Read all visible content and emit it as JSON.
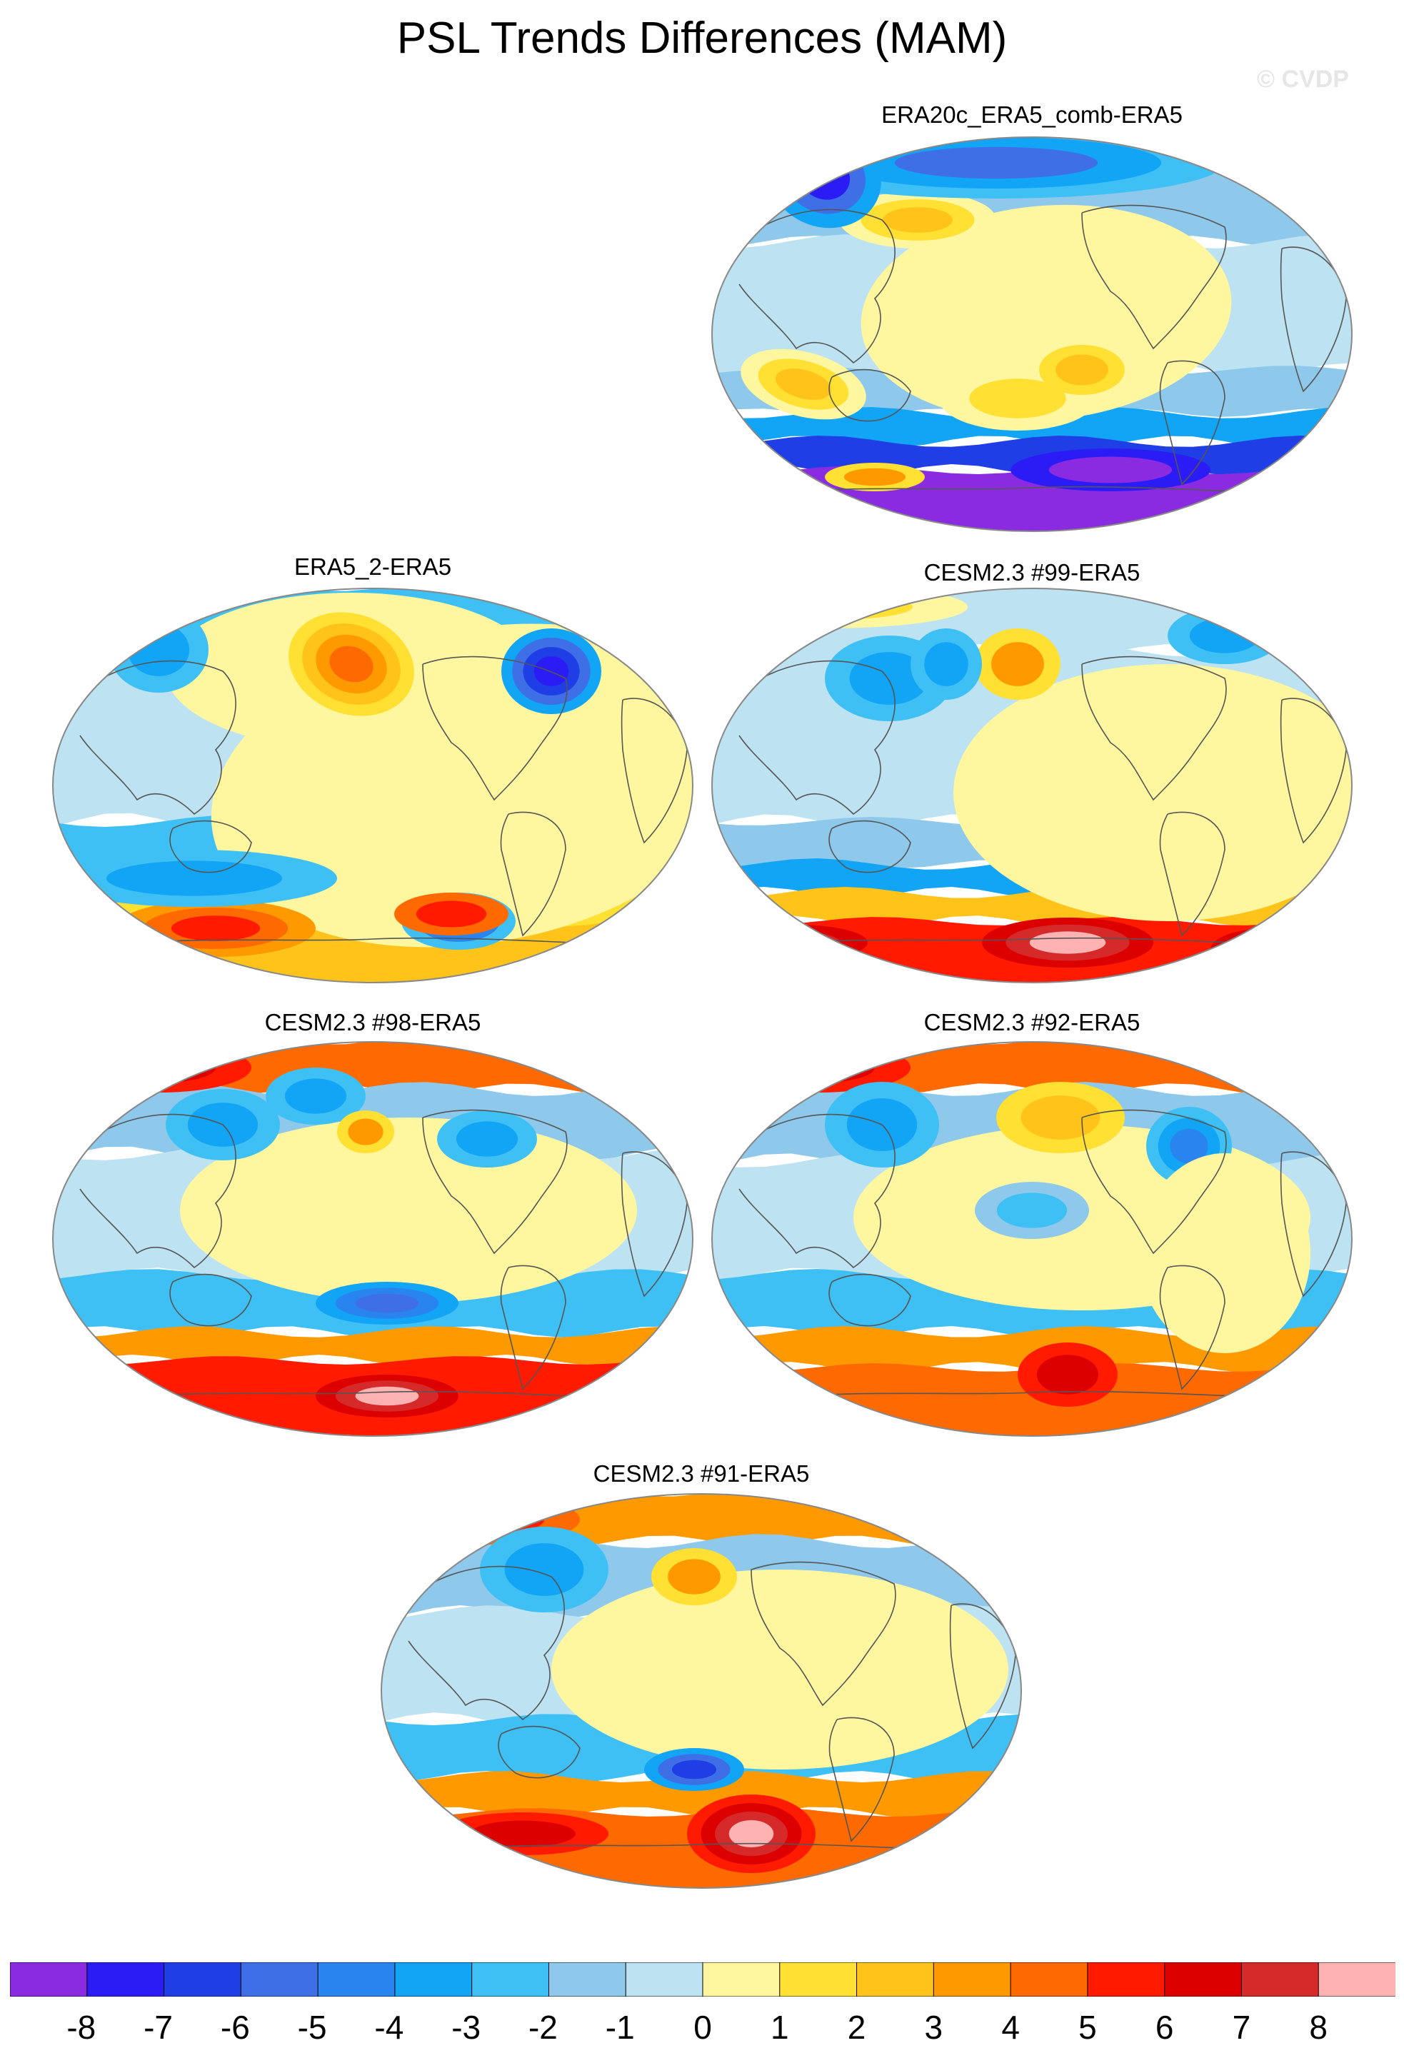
{
  "page": {
    "title": "PSL Trends Differences (MAM)",
    "watermark": "© CVDP"
  },
  "chart_data": {
    "type": "heatmap",
    "projection": "world-map (Winkel-like oval), Pacific-centered",
    "panels": [
      {
        "title": "ERA20c_ERA5_comb-ERA5",
        "pattern": "era20c"
      },
      {
        "title": "ERA5_2-ERA5",
        "pattern": "era5_2"
      },
      {
        "title": "CESM2.3 #99-ERA5",
        "pattern": "cesm99"
      },
      {
        "title": "CESM2.3 #98-ERA5",
        "pattern": "cesm98"
      },
      {
        "title": "CESM2.3 #92-ERA5",
        "pattern": "cesm92"
      },
      {
        "title": "CESM2.3 #91-ERA5",
        "pattern": "cesm91"
      }
    ],
    "colorbar": {
      "labels": [
        "-8",
        "-7",
        "-6",
        "-5",
        "-4",
        "-3",
        "-2",
        "-1",
        "0",
        "1",
        "2",
        "3",
        "4",
        "5",
        "6",
        "7",
        "8"
      ],
      "colors": [
        "#8a2be2",
        "#2b1cf5",
        "#1f3ee6",
        "#3f6fe6",
        "#2a84f0",
        "#12a4f5",
        "#3fc0f5",
        "#8ec8ea",
        "#bde2f2",
        "#fff7a0",
        "#ffe033",
        "#ffc31a",
        "#ff9900",
        "#ff6a00",
        "#ff1a00",
        "#dd0000",
        "#d62a2a",
        "#ffb2b2"
      ]
    }
  }
}
